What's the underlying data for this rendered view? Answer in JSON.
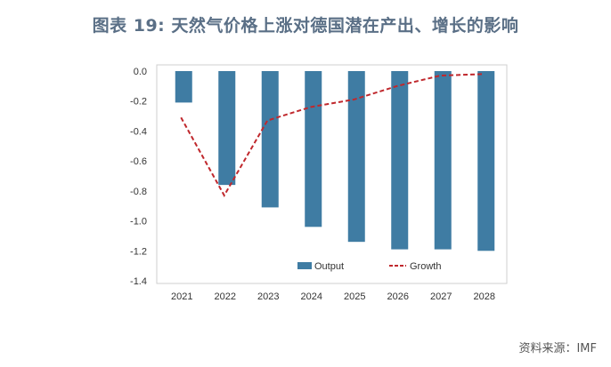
{
  "title": "图表 19: 天然气价格上涨对德国潜在产出、增长的影响",
  "source": "资料来源：IMF",
  "chart_data": {
    "type": "bar",
    "categories": [
      "2021",
      "2022",
      "2023",
      "2024",
      "2025",
      "2026",
      "2027",
      "2028"
    ],
    "series": [
      {
        "name": "Output",
        "type": "bar",
        "color": "#3f7ca3",
        "values": [
          -0.21,
          -0.76,
          -0.91,
          -1.04,
          -1.14,
          -1.19,
          -1.19,
          -1.2
        ]
      },
      {
        "name": "Growth",
        "type": "line",
        "style": "dashed",
        "color": "#c0282d",
        "values": [
          -0.31,
          -0.83,
          -0.33,
          -0.24,
          -0.19,
          -0.1,
          -0.03,
          -0.02
        ]
      }
    ],
    "yticks": [
      "0.0",
      "-0.2",
      "-0.4",
      "-0.6",
      "-0.8",
      "-1.0",
      "-1.2",
      "-1.4"
    ],
    "ylim": [
      -1.4,
      0.0
    ],
    "grid": false,
    "legend": "bottom-inside"
  }
}
